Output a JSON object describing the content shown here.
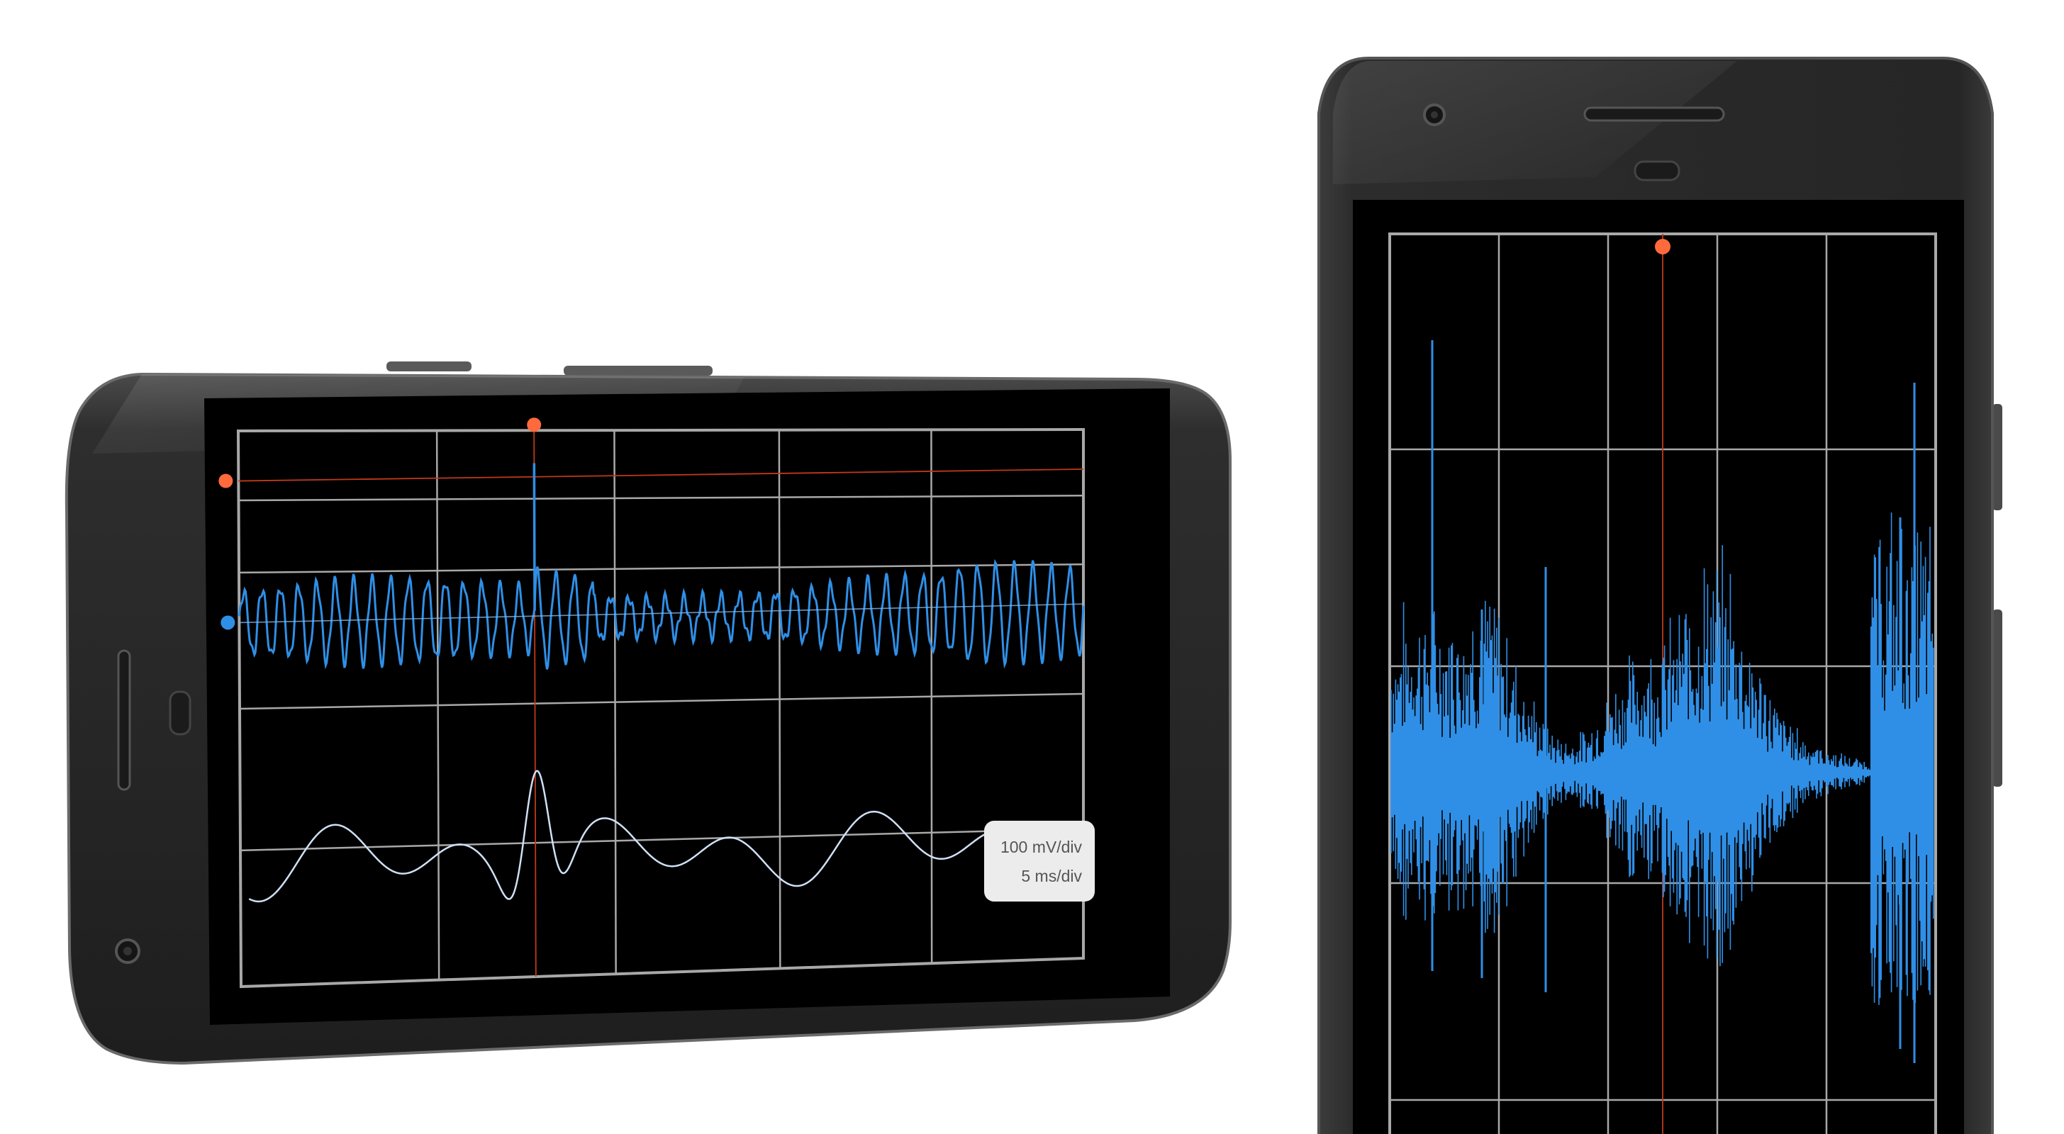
{
  "scope_readout": {
    "voltage_scale": "100 mV/div",
    "time_scale": "5 ms/div"
  },
  "colors": {
    "background": "#ffffff",
    "phone_body": "#2a2a2a",
    "screen": "#000000",
    "grid": "#a8a8a8",
    "trace_primary": "#2f8fe6",
    "trace_secondary": "#cfe0f5",
    "cursor_marker": "#ff6a3d",
    "trigger_marker": "#2f8fe6"
  },
  "icons": [
    "front-camera-icon",
    "earpiece-speaker-icon",
    "proximity-sensor-icon"
  ]
}
